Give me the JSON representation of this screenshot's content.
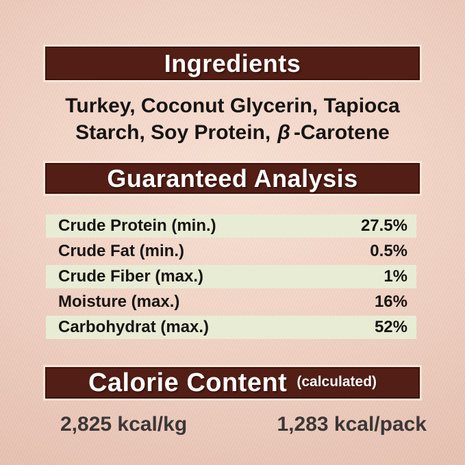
{
  "sections": {
    "ingredients": {
      "title": "Ingredients",
      "line1": "Turkey, Coconut Glycerin, Tapioca",
      "line2_prefix": "Starch, Soy Protein,",
      "beta": "β",
      "line2_suffix": "-Carotene"
    },
    "guaranteed_analysis": {
      "title": "Guaranteed Analysis",
      "rows": [
        {
          "label": "Crude Protein (min.)",
          "value": "27.5%"
        },
        {
          "label": "Crude Fat (min.)",
          "value": "0.5%"
        },
        {
          "label": "Crude Fiber (max.)",
          "value": "1%"
        },
        {
          "label": "Moisture (max.)",
          "value": "16%"
        },
        {
          "label": "Carbohydrat (max.)",
          "value": "52%"
        }
      ]
    },
    "calorie_content": {
      "title": "Calorie Content",
      "subtitle": "(calculated)",
      "per_kg": "2,825 kcal/kg",
      "per_pack": "1,283 kcal/pack"
    }
  },
  "colors": {
    "background": "#f0d1c3",
    "header_bar": "#521e15",
    "header_bar_border": "#3c1109",
    "header_text": "#ffffff",
    "row_highlight": "#e8ecd4",
    "body_text": "#171412",
    "value_text": "#3b3737"
  }
}
